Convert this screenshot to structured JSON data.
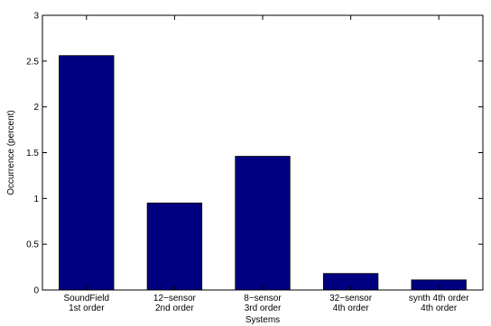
{
  "chart_data": {
    "type": "bar",
    "categories": [
      [
        "SoundField",
        "1st order"
      ],
      [
        "12−sensor",
        "2nd order"
      ],
      [
        "8−sensor",
        "3rd order"
      ],
      [
        "32−sensor",
        "4th order"
      ],
      [
        "synth 4th order",
        "4th order"
      ]
    ],
    "values": [
      2.56,
      0.95,
      1.46,
      0.18,
      0.11
    ],
    "title": "",
    "xlabel": "Systems",
    "ylabel": "Occurrence (percent)",
    "ylim": [
      0,
      3
    ],
    "yticks": [
      0,
      0.5,
      1,
      1.5,
      2,
      2.5,
      3
    ],
    "ytick_labels": [
      "0",
      "0.5",
      "1",
      "1.5",
      "2",
      "2.5",
      "3"
    ],
    "bar_color": "#000080",
    "grid": false,
    "legend": "none"
  }
}
